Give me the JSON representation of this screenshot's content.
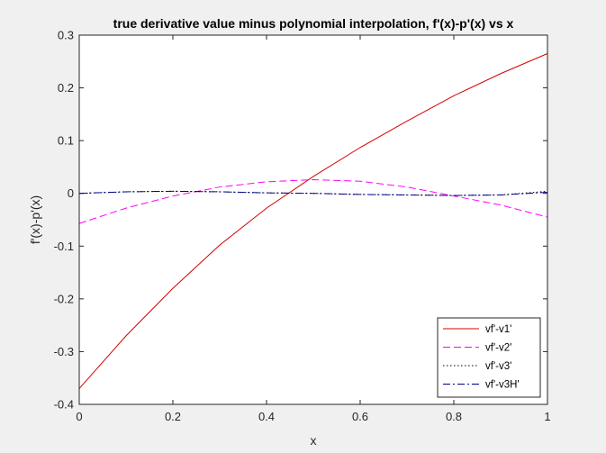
{
  "chart_data": {
    "type": "line",
    "title": "true derivative value minus polynomial interpolation, f'(x)-p'(x) vs x",
    "xlabel": "x",
    "ylabel": "f'(x)-p'(x)",
    "xlim": [
      0,
      1
    ],
    "ylim": [
      -0.4,
      0.3
    ],
    "xticks": [
      0,
      0.2,
      0.4,
      0.6,
      0.8,
      1
    ],
    "xtick_labels": [
      "0",
      "0.2",
      "0.4",
      "0.6",
      "0.8",
      "1"
    ],
    "yticks": [
      -0.4,
      -0.3,
      -0.2,
      -0.1,
      0,
      0.1,
      0.2,
      0.3
    ],
    "ytick_labels": [
      "-0.4",
      "-0.3",
      "-0.2",
      "-0.1",
      "0",
      "0.1",
      "0.2",
      "0.3"
    ],
    "grid": false,
    "legend_position": "bottom-right",
    "x": [
      0,
      0.1,
      0.2,
      0.3,
      0.4,
      0.5,
      0.6,
      0.7,
      0.8,
      0.9,
      1.0
    ],
    "series": [
      {
        "name": "vf'-v1'",
        "color": "#d40000",
        "style": "solid",
        "values": [
          -0.37,
          -0.27,
          -0.18,
          -0.098,
          -0.028,
          0.032,
          0.087,
          0.137,
          0.185,
          0.227,
          0.265
        ]
      },
      {
        "name": "vf'-v2'",
        "color": "#ff00ff",
        "style": "dashed",
        "values": [
          -0.057,
          -0.028,
          -0.005,
          0.012,
          0.022,
          0.026,
          0.023,
          0.012,
          -0.005,
          -0.022,
          -0.045
        ]
      },
      {
        "name": "vf'-v3'",
        "color": "#000000",
        "style": "dotted",
        "values": [
          0.0,
          0.003,
          0.004,
          0.003,
          0.001,
          0.0,
          -0.002,
          -0.003,
          -0.004,
          -0.003,
          0.004
        ]
      },
      {
        "name": "vf'-v3H'",
        "color": "#00008b",
        "style": "dashdot",
        "values": [
          0.0,
          0.003,
          0.004,
          0.003,
          0.001,
          0.0,
          -0.002,
          -0.003,
          -0.004,
          -0.003,
          0.002
        ]
      }
    ]
  }
}
